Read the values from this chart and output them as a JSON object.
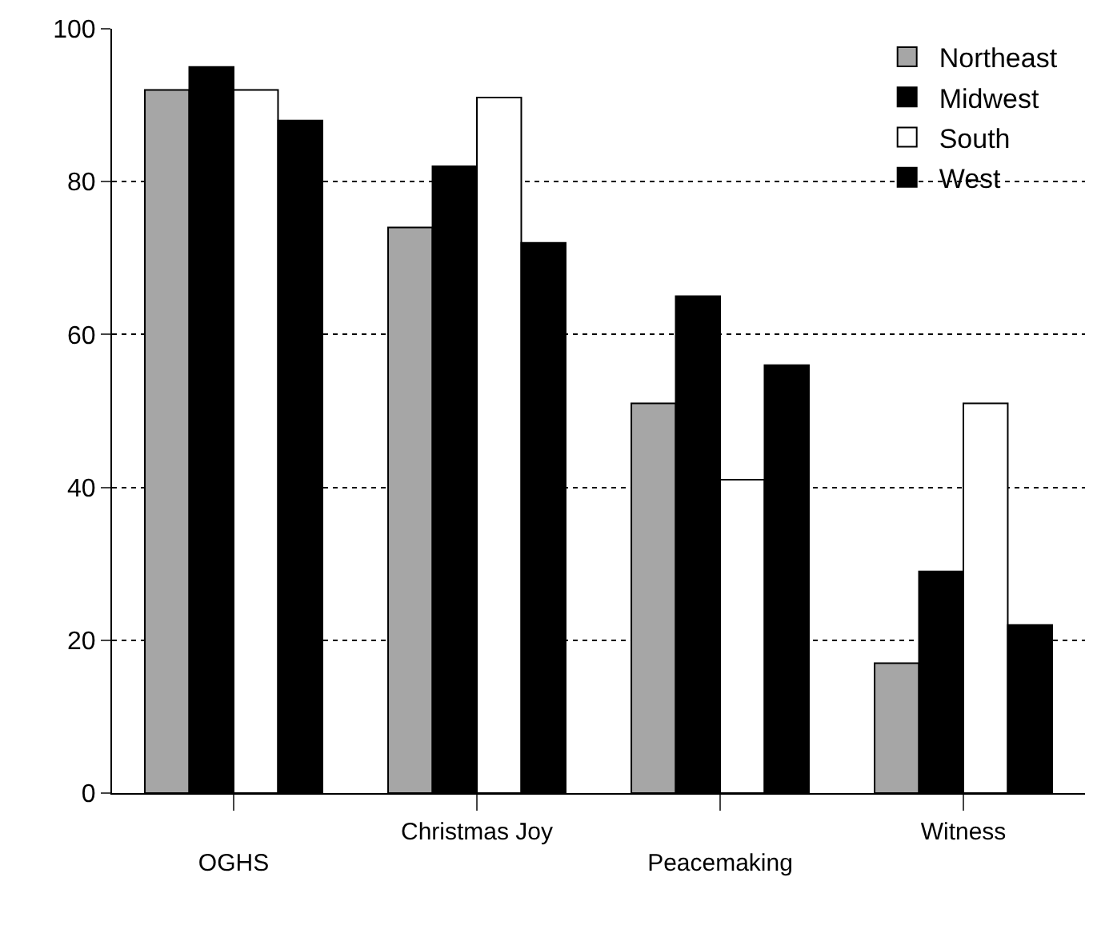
{
  "chart_data": {
    "type": "bar",
    "categories": [
      "OGHS",
      "Christmas Joy",
      "Peacemaking",
      "Witness"
    ],
    "series": [
      {
        "name": "Northeast",
        "color": "#a6a6a6",
        "values": [
          92,
          74,
          51,
          17
        ]
      },
      {
        "name": "Midwest",
        "color": "#000000",
        "values": [
          95,
          82,
          65,
          29
        ]
      },
      {
        "name": "South",
        "color": "#ffffff",
        "values": [
          92,
          91,
          41,
          51
        ]
      },
      {
        "name": "West",
        "color": "#000000",
        "values": [
          88,
          72,
          56,
          22
        ]
      }
    ],
    "ylim": [
      0,
      100
    ],
    "yticks": [
      0,
      20,
      40,
      60,
      80,
      100
    ],
    "grid": "y",
    "line_style": "dotted",
    "legend": "top right"
  }
}
